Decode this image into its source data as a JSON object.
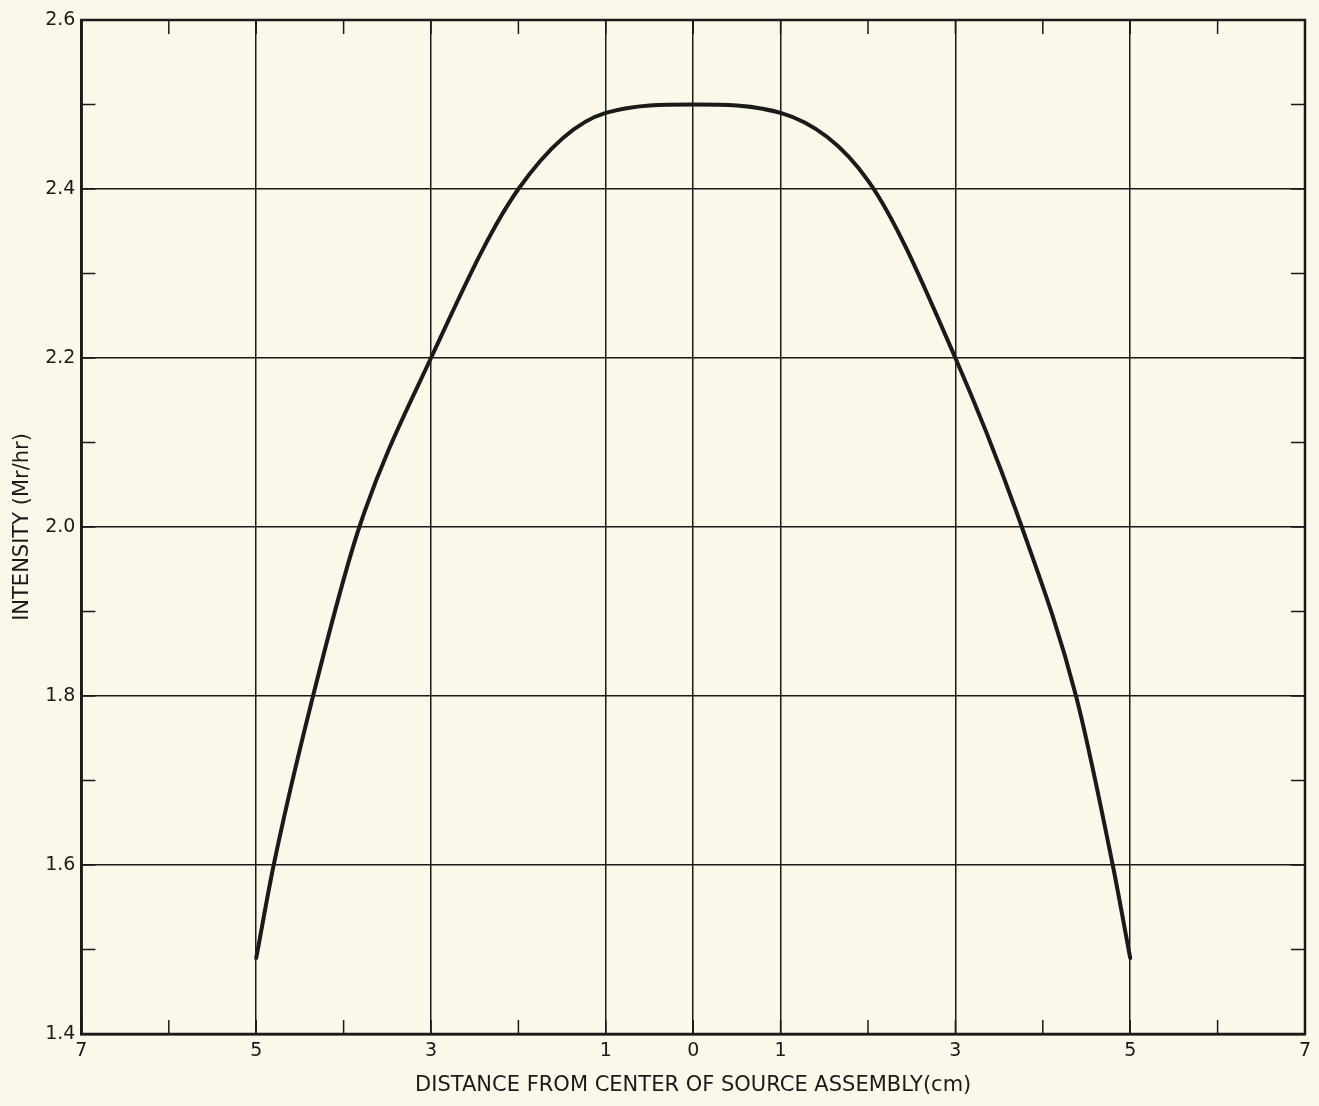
{
  "chart_data": {
    "type": "line",
    "xlabel": "DISTANCE FROM CENTER OF SOURCE ASSEMBLY(cm)",
    "ylabel": "INTENSITY (Mr/hr)",
    "x": [
      -5,
      -4.8,
      -4.35,
      -3.82,
      -3,
      -2,
      -1,
      0,
      1,
      2,
      3,
      3.76,
      4.38,
      4.8,
      5
    ],
    "series": [
      {
        "color": "#1a1a1a",
        "values": [
          1.49,
          1.6,
          1.8,
          2.0,
          2.2,
          2.4,
          2.49,
          2.5,
          2.49,
          2.41,
          2.2,
          2.0,
          1.8,
          1.6,
          1.49
        ]
      }
    ],
    "xlim": [
      -7,
      7
    ],
    "xticks": [
      {
        "value": -7,
        "label": "7"
      },
      {
        "value": -6,
        "label": null
      },
      {
        "value": -5,
        "label": "5"
      },
      {
        "value": -4,
        "label": null
      },
      {
        "value": -3,
        "label": "3"
      },
      {
        "value": -2,
        "label": null
      },
      {
        "value": -1,
        "label": "1"
      },
      {
        "value": 0,
        "label": "0"
      },
      {
        "value": 1,
        "label": "1"
      },
      {
        "value": 2,
        "label": null
      },
      {
        "value": 3,
        "label": "3"
      },
      {
        "value": 4,
        "label": null
      },
      {
        "value": 5,
        "label": "5"
      },
      {
        "value": 6,
        "label": null
      },
      {
        "value": 7,
        "label": "7"
      }
    ],
    "ylim": [
      1.4,
      2.6
    ],
    "yticks": [
      {
        "value": 1.4,
        "label": "1.4"
      },
      {
        "value": 1.5,
        "label": null
      },
      {
        "value": 1.6,
        "label": "1.6"
      },
      {
        "value": 1.7,
        "label": null
      },
      {
        "value": 1.8,
        "label": "1.8"
      },
      {
        "value": 1.9,
        "label": null
      },
      {
        "value": 2.0,
        "label": "2.0"
      },
      {
        "value": 2.1,
        "label": null
      },
      {
        "value": 2.2,
        "label": "2.2"
      },
      {
        "value": 2.3,
        "label": null
      },
      {
        "value": 2.4,
        "label": "2.4"
      },
      {
        "value": 2.5,
        "label": null
      },
      {
        "value": 2.6,
        "label": "2.6"
      }
    ],
    "grid": true,
    "legend": false,
    "marker": "none",
    "line_style": "solid"
  }
}
